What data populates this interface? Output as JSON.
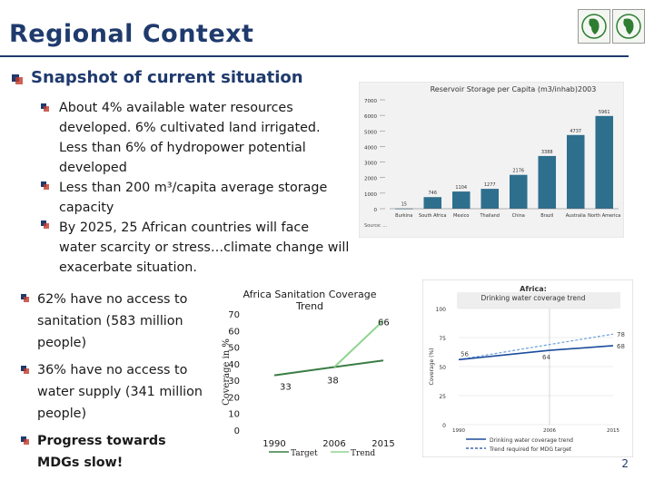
{
  "slide": {
    "title": "Regional Context",
    "subtitle": "Snapshot of current situation",
    "page_number": "2"
  },
  "top_bullets": [
    "About 4% available water resources developed.  6% cultivated land irrigated.  Less than 6% of hydropower potential developed",
    "Less than 200 m³/capita average storage capacity",
    "By 2025, 25 African countries will face water scarcity or stress…climate change will exacerbate situation."
  ],
  "left_bullets": [
    "62% have no access to sanitation (583 million people)",
    "36% have no access to water supply (341 million people)",
    "Progress towards MDGs slow!"
  ],
  "colors": {
    "title": "#1f3a6d",
    "bar": "#2e6f8e",
    "target_line": "#3a7d44",
    "trend_line": "#8fd48f",
    "water_actual": "#1b4b9b",
    "water_target": "#6aa0d8"
  },
  "chart_data": [
    {
      "type": "bar",
      "title": "Reservoir Storage per Capita (m3/inhab)2003",
      "categories": [
        "Burkina",
        "South Africa",
        "Mexico",
        "Thailand",
        "China",
        "Brazil",
        "Australia",
        "North America"
      ],
      "values": [
        15,
        746,
        1104,
        1277,
        2176,
        3388,
        4737,
        5961
      ],
      "value_labels": [
        "15",
        "746",
        "1104",
        "1277",
        "2176",
        "3388",
        "4737",
        "5961"
      ],
      "ylim": [
        0,
        7000
      ],
      "yticks": [
        0,
        1000,
        2000,
        3000,
        4000,
        5000,
        6000,
        7000
      ],
      "source": "Source: ..."
    },
    {
      "type": "line",
      "title": "Africa Sanitation Coverage Trend",
      "ylabel": "Coverage in %",
      "x": [
        1990,
        2006,
        2015
      ],
      "ylim": [
        0,
        70
      ],
      "yticks": [
        0,
        10,
        20,
        30,
        40,
        50,
        60,
        70
      ],
      "series": [
        {
          "name": "Target",
          "values": [
            33,
            38,
            42
          ]
        },
        {
          "name": "Trend",
          "values": [
            null,
            38,
            66
          ]
        }
      ],
      "annotations": [
        "33",
        "38",
        "66"
      ],
      "xtick_labels": [
        "1990",
        "2006",
        "2015"
      ]
    },
    {
      "type": "line",
      "title": "Africa: Drinking water coverage trend",
      "ylabel": "Coverage (%)",
      "x": [
        1990,
        2006,
        2015
      ],
      "ylim": [
        0,
        100
      ],
      "yticks": [
        0,
        25,
        50,
        75,
        100
      ],
      "series": [
        {
          "name": "Drinking water coverage trend",
          "values": [
            56,
            64,
            68
          ]
        },
        {
          "name": "Trend required for MDG target",
          "values": [
            56,
            69,
            78
          ]
        }
      ],
      "annotations": [
        "56",
        "64",
        "68",
        "78"
      ],
      "xtick_labels": [
        "1990",
        "2006",
        "2015"
      ]
    }
  ]
}
